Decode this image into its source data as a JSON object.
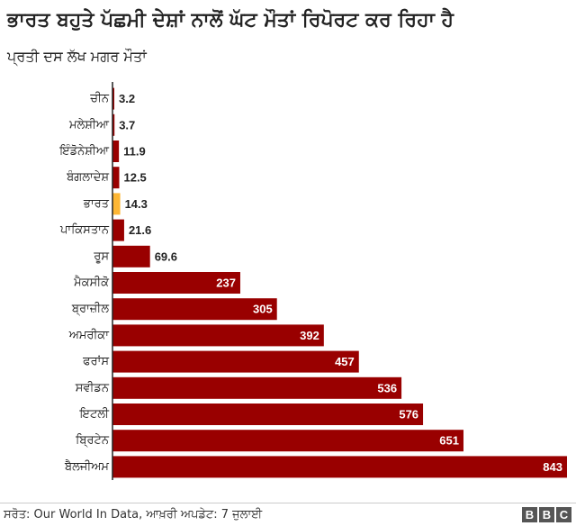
{
  "chart_data": {
    "type": "bar",
    "orientation": "horizontal",
    "title": "ਭਾਰਤ ਬਹੁਤੇ ਪੱਛਮੀ ਦੇਸ਼ਾਂ ਨਾਲੋਂ ਘੱਟ ਮੌਤਾਂ ਰਿਪੋਰਟ ਕਰ ਰਿਹਾ ਹੈ",
    "subtitle": "ਪ੍ਰਤੀ ਦਸ ਲੱਖ ਮਗਰ ਮੌਤਾਂ",
    "categories": [
      "ਚੀਨ",
      "ਮਲੇਸ਼ੀਆ",
      "ਇੰਡੋਨੇਸ਼ੀਆ",
      "ਬੰਗਲਾਦੇਸ਼",
      "ਭਾਰਤ",
      "ਪਾਕਿਸਤਾਨ",
      "ਰੂਸ",
      "ਮੈਕਸੀਕੋ",
      "ਬ੍ਰਾਜ਼ੀਲ",
      "ਅਮਰੀਕਾ",
      "ਫਰਾਂਸ",
      "ਸਵੀਡਨ",
      "ਇਟਲੀ",
      "ਬ੍ਰਿਟੇਨ",
      "ਬੈਲਜੀਅਮ"
    ],
    "values": [
      3.2,
      3.7,
      11.9,
      12.5,
      14.3,
      21.6,
      69.6,
      237,
      305,
      392,
      457,
      536,
      576,
      651,
      843
    ],
    "labels": [
      "3.2",
      "3.7",
      "11.9",
      "12.5",
      "14.3",
      "21.6",
      "69.6",
      "237",
      "305",
      "392",
      "457",
      "536",
      "576",
      "651",
      "843"
    ],
    "highlight_category": "ਭਾਰਤ",
    "colors": {
      "bar": "#990000",
      "highlight": "#fdb634",
      "label_inside": "#ffffff",
      "label_outside": "#222222",
      "axis": "#222222"
    },
    "xlim": [
      0,
      843
    ],
    "grid": false,
    "legend": "none"
  },
  "footer": {
    "source": "ਸਰੋਤ: Our World In Data, ਆਖ਼ਰੀ ਅਪਡੇਟ: 7 ਜੁਲਾਈ",
    "logo_letters": [
      "B",
      "B",
      "C"
    ]
  }
}
